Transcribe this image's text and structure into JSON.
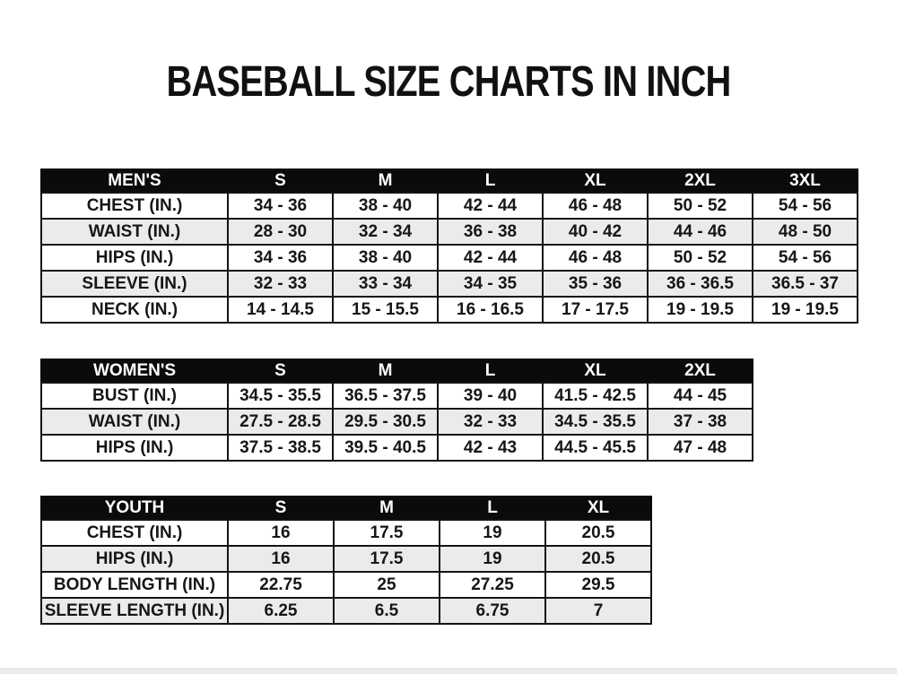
{
  "page": {
    "title": "BASEBALL SIZE CHARTS IN INCH"
  },
  "colors": {
    "background": "#ffffff",
    "header_bg": "#0b0b0b",
    "header_text": "#ffffff",
    "row_stripe": "#ecebe9",
    "border": "#141414",
    "text": "#161616"
  },
  "tables": [
    {
      "name": "MEN'S",
      "columns": [
        "S",
        "M",
        "L",
        "XL",
        "2XL",
        "3XL"
      ],
      "rows": [
        {
          "label": "CHEST (IN.)",
          "values": [
            "34 - 36",
            "38 - 40",
            "42 - 44",
            "46 - 48",
            "50 - 52",
            "54 - 56"
          ]
        },
        {
          "label": "WAIST (IN.)",
          "values": [
            "28 - 30",
            "32 - 34",
            "36 - 38",
            "40 - 42",
            "44 - 46",
            "48 - 50"
          ]
        },
        {
          "label": "HIPS (IN.)",
          "values": [
            "34 - 36",
            "38 - 40",
            "42 - 44",
            "46 - 48",
            "50 - 52",
            "54 - 56"
          ]
        },
        {
          "label": "SLEEVE (IN.)",
          "values": [
            "32 - 33",
            "33 - 34",
            "34 - 35",
            "35 - 36",
            "36 - 36.5",
            "36.5 - 37"
          ]
        },
        {
          "label": "NECK (IN.)",
          "values": [
            "14 - 14.5",
            "15 - 15.5",
            "16 - 16.5",
            "17 - 17.5",
            "19 - 19.5",
            "19 - 19.5"
          ]
        }
      ]
    },
    {
      "name": "WOMEN'S",
      "columns": [
        "S",
        "M",
        "L",
        "XL",
        "2XL"
      ],
      "rows": [
        {
          "label": "BUST (IN.)",
          "values": [
            "34.5 - 35.5",
            "36.5 - 37.5",
            "39 - 40",
            "41.5 - 42.5",
            "44 - 45"
          ]
        },
        {
          "label": "WAIST (IN.)",
          "values": [
            "27.5 - 28.5",
            "29.5 - 30.5",
            "32 - 33",
            "34.5 - 35.5",
            "37 - 38"
          ]
        },
        {
          "label": "HIPS (IN.)",
          "values": [
            "37.5 - 38.5",
            "39.5 - 40.5",
            "42 - 43",
            "44.5 - 45.5",
            "47 - 48"
          ]
        }
      ]
    },
    {
      "name": "YOUTH",
      "columns": [
        "S",
        "M",
        "L",
        "XL"
      ],
      "rows": [
        {
          "label": "CHEST (IN.)",
          "values": [
            "16",
            "17.5",
            "19",
            "20.5"
          ]
        },
        {
          "label": "HIPS (IN.)",
          "values": [
            "16",
            "17.5",
            "19",
            "20.5"
          ]
        },
        {
          "label": "BODY LENGTH (IN.)",
          "values": [
            "22.75",
            "25",
            "27.25",
            "29.5"
          ]
        },
        {
          "label": "SLEEVE LENGTH (IN.)",
          "values": [
            "6.25",
            "6.5",
            "6.75",
            "7"
          ]
        }
      ]
    }
  ]
}
